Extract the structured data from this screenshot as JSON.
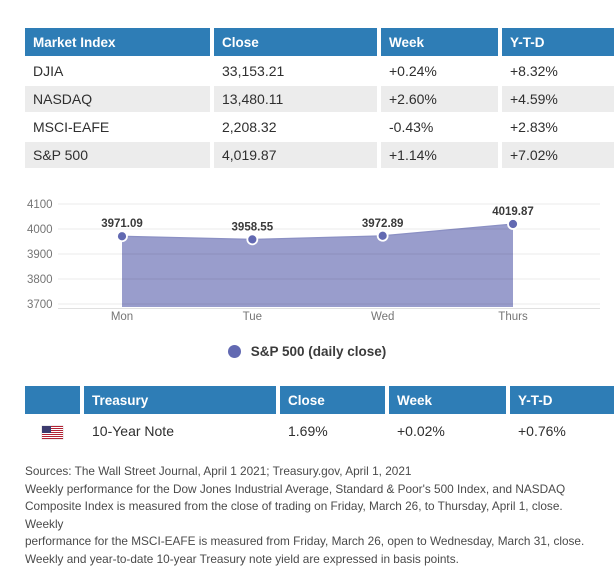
{
  "colors": {
    "header_blue": "#2e7db6",
    "row_stripe": "#ececec",
    "area_fill": "#999dcc",
    "area_stroke": "#8b90c4",
    "point_fill": "#6269b2",
    "grid_line": "rgba(0,0,0,0.08)",
    "axis_line": "rgba(0,0,0,0.12)",
    "axis_text": "#757575",
    "flag_red": "#b22234",
    "flag_blue": "#3c3b6e"
  },
  "market_table": {
    "headers": [
      "Market Index",
      "Close",
      "Week",
      "Y-T-D"
    ],
    "rows": [
      {
        "index": "DJIA",
        "close": "33,153.21",
        "week": "+0.24%",
        "ytd": "+8.32%"
      },
      {
        "index": "NASDAQ",
        "close": "13,480.11",
        "week": "+2.60%",
        "ytd": "+4.59%"
      },
      {
        "index": "MSCI-EAFE",
        "close": "2,208.32",
        "week": "-0.43%",
        "ytd": "+2.83%"
      },
      {
        "index": "S&P 500",
        "close": "4,019.87",
        "week": "+1.14%",
        "ytd": "+7.02%"
      }
    ]
  },
  "chart_data": {
    "type": "area",
    "title": "",
    "categories": [
      "Mon",
      "Tue",
      "Wed",
      "Thurs"
    ],
    "values": [
      3971.09,
      3958.55,
      3972.89,
      4019.87
    ],
    "point_labels": [
      "3971.09",
      "3958.55",
      "3972.89",
      "4019.87"
    ],
    "yticks": [
      4100,
      4000,
      3900,
      3800,
      3700
    ],
    "ylim": [
      3688,
      4188
    ],
    "grid": true,
    "legend": "S&P 500 (daily close)",
    "legend_position": "bottom"
  },
  "treasury_table": {
    "headers": [
      "",
      "Treasury",
      "Close",
      "Week",
      "Y-T-D"
    ],
    "rows": [
      {
        "flag_icon": "us-flag",
        "name": "10-Year Note",
        "close": "1.69%",
        "week": "+0.02%",
        "ytd": "+0.76%"
      }
    ]
  },
  "footnote": "Sources: The Wall Street Journal, April 1 2021; Treasury.gov, April 1, 2021\nWeekly performance for the Dow Jones Industrial Average, Standard & Poor's 500 Index, and NASDAQ\nComposite Index is measured from the close of trading on Friday, March 26, to Thursday, April 1, close. Weekly\nperformance for the MSCI-EAFE is measured from Friday, March 26, open to Wednesday, March 31, close.\nWeekly and year-to-date 10-year Treasury note yield are expressed in basis points."
}
